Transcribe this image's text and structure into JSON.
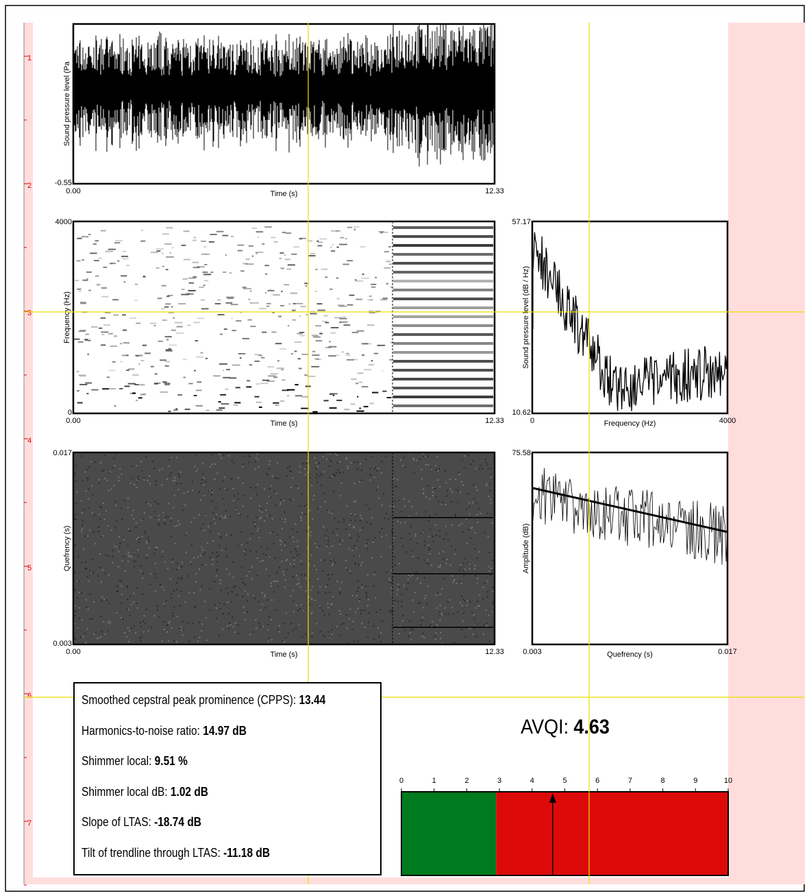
{
  "ruler": {
    "marks": [
      "1",
      "2",
      "3",
      "4",
      "5",
      "6",
      "7"
    ]
  },
  "waveform": {
    "y_label": "Sound pressure level (Pa",
    "y_bottom": "-0.55",
    "x_label": "Time (s)",
    "x_left": "0.00",
    "x_right": "12.33"
  },
  "spectrogram": {
    "y_label": "Frequency (Hz)",
    "y_top": "4000",
    "y_bottom": "0",
    "x_label": "Time (s)",
    "x_left": "0.00",
    "x_right": "12.33"
  },
  "ltas": {
    "y_label": "Sound pressure level (dB / Hz)",
    "y_top": "57.17",
    "y_bottom": "10.62",
    "x_label": "Frequency (Hz)",
    "x_left": "0",
    "x_right": "4000"
  },
  "cepstrogram": {
    "y_label": "Quefrency (s)",
    "y_top": "0.017",
    "y_bottom": "0.003",
    "x_label": "Time (s)",
    "x_left": "0.00",
    "x_right": "12.33"
  },
  "cepstrum": {
    "y_label": "Amplitude (dB)",
    "y_top": "75.58",
    "x_label": "Quefrency (s)",
    "x_left": "0.003",
    "x_right": "0.017"
  },
  "measures": [
    {
      "label": "Smoothed cepstral peak prominence (CPPS):",
      "value": "13.44"
    },
    {
      "label": "Harmonics-to-noise ratio:",
      "value": "14.97 dB"
    },
    {
      "label": "Shimmer local:",
      "value": "9.51 %"
    },
    {
      "label": "Shimmer local dB:",
      "value": "1.02 dB"
    },
    {
      "label": "Slope of LTAS:",
      "value": "-18.74 dB"
    },
    {
      "label": "Tilt of trendline through LTAS:",
      "value": "-11.18 dB"
    }
  ],
  "avqi": {
    "label": "AVQI:",
    "value": 4.63,
    "scale_ticks": [
      0,
      1,
      2,
      3,
      4,
      5,
      6,
      7,
      8,
      9,
      10
    ],
    "threshold": 2.9,
    "low_color": "#007a1e",
    "high_color": "#dd0a0a"
  }
}
